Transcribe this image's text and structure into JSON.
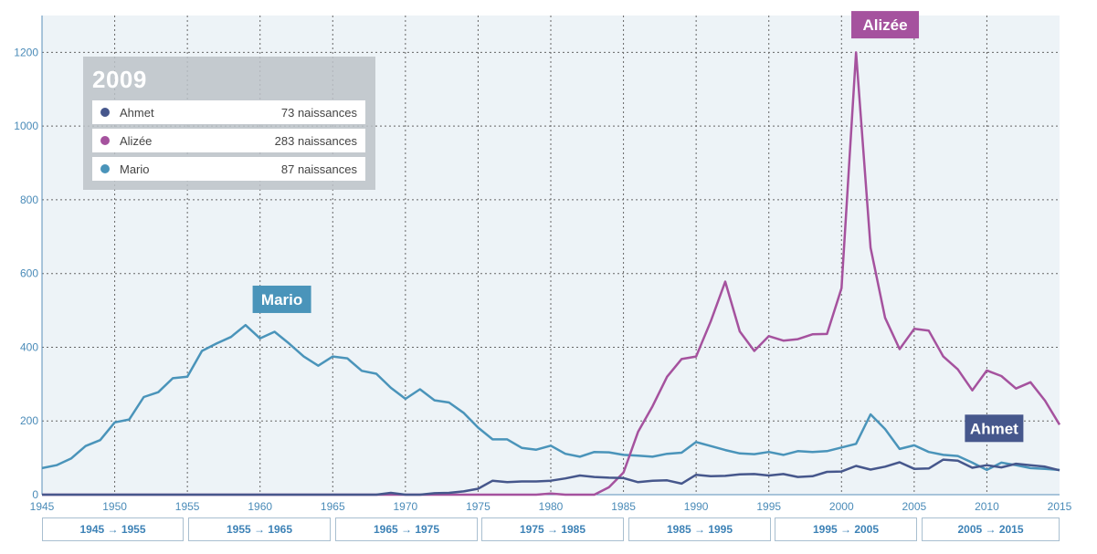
{
  "chart_data": {
    "type": "line",
    "x_range": [
      1945,
      2015
    ],
    "ylim": [
      0,
      1300
    ],
    "y_ticks": [
      0,
      200,
      400,
      600,
      800,
      1000,
      1200
    ],
    "x_ticks": [
      1945,
      1950,
      1955,
      1960,
      1965,
      1970,
      1975,
      1980,
      1985,
      1990,
      1995,
      2000,
      2005,
      2010,
      2015
    ],
    "grid": true,
    "series": [
      {
        "name": "Mario",
        "color": "#4a94ba",
        "x": [
          1945,
          1946,
          1947,
          1948,
          1949,
          1950,
          1951,
          1952,
          1953,
          1954,
          1955,
          1956,
          1957,
          1958,
          1959,
          1960,
          1961,
          1962,
          1963,
          1964,
          1965,
          1966,
          1967,
          1968,
          1969,
          1970,
          1971,
          1972,
          1973,
          1974,
          1975,
          1976,
          1977,
          1978,
          1979,
          1980,
          1981,
          1982,
          1983,
          1984,
          1985,
          1986,
          1987,
          1988,
          1989,
          1990,
          1991,
          1992,
          1993,
          1994,
          1995,
          1996,
          1997,
          1998,
          1999,
          2000,
          2001,
          2002,
          2003,
          2004,
          2005,
          2006,
          2007,
          2008,
          2009,
          2010,
          2011,
          2012,
          2013,
          2014,
          2015
        ],
        "values": [
          72,
          80,
          98,
          132,
          148,
          196,
          204,
          265,
          278,
          316,
          320,
          390,
          410,
          428,
          460,
          424,
          442,
          410,
          375,
          350,
          375,
          370,
          336,
          328,
          290,
          260,
          286,
          256,
          250,
          222,
          182,
          150,
          150,
          127,
          122,
          133,
          111,
          103,
          116,
          115,
          108,
          106,
          103,
          111,
          114,
          143,
          132,
          121,
          112,
          110,
          116,
          108,
          118,
          116,
          118,
          128,
          138,
          218,
          178,
          124,
          134,
          116,
          108,
          105,
          87,
          67,
          87,
          80,
          72,
          70,
          67
        ]
      },
      {
        "name": "Alizée",
        "color": "#a5529e",
        "x": [
          1945,
          1946,
          1947,
          1948,
          1949,
          1950,
          1951,
          1952,
          1953,
          1954,
          1955,
          1956,
          1957,
          1958,
          1959,
          1960,
          1961,
          1962,
          1963,
          1964,
          1965,
          1966,
          1967,
          1968,
          1969,
          1970,
          1971,
          1972,
          1973,
          1974,
          1975,
          1976,
          1977,
          1978,
          1979,
          1980,
          1981,
          1982,
          1983,
          1984,
          1985,
          1986,
          1987,
          1988,
          1989,
          1990,
          1991,
          1992,
          1993,
          1994,
          1995,
          1996,
          1997,
          1998,
          1999,
          2000,
          2001,
          2002,
          2003,
          2004,
          2005,
          2006,
          2007,
          2008,
          2009,
          2010,
          2011,
          2012,
          2013,
          2014,
          2015
        ],
        "values": [
          0,
          0,
          0,
          0,
          0,
          0,
          0,
          0,
          0,
          0,
          0,
          0,
          0,
          0,
          0,
          0,
          0,
          0,
          0,
          0,
          0,
          0,
          0,
          0,
          0,
          0,
          0,
          0,
          0,
          0,
          0,
          0,
          0,
          0,
          0,
          3,
          0,
          0,
          0,
          20,
          60,
          170,
          240,
          320,
          368,
          375,
          470,
          578,
          443,
          390,
          430,
          418,
          422,
          435,
          436,
          560,
          1200,
          670,
          480,
          395,
          450,
          445,
          375,
          340,
          283,
          337,
          322,
          288,
          305,
          255,
          190
        ]
      },
      {
        "name": "Ahmet",
        "color": "#46578c",
        "x": [
          1945,
          1946,
          1947,
          1948,
          1949,
          1950,
          1951,
          1952,
          1953,
          1954,
          1955,
          1956,
          1957,
          1958,
          1959,
          1960,
          1961,
          1962,
          1963,
          1964,
          1965,
          1966,
          1967,
          1968,
          1969,
          1970,
          1971,
          1972,
          1973,
          1974,
          1975,
          1976,
          1977,
          1978,
          1979,
          1980,
          1981,
          1982,
          1983,
          1984,
          1985,
          1986,
          1987,
          1988,
          1989,
          1990,
          1991,
          1992,
          1993,
          1994,
          1995,
          1996,
          1997,
          1998,
          1999,
          2000,
          2001,
          2002,
          2003,
          2004,
          2005,
          2006,
          2007,
          2008,
          2009,
          2010,
          2011,
          2012,
          2013,
          2014,
          2015
        ],
        "values": [
          0,
          0,
          0,
          0,
          0,
          0,
          0,
          0,
          0,
          0,
          0,
          0,
          0,
          0,
          0,
          0,
          0,
          0,
          0,
          0,
          0,
          0,
          0,
          0,
          5,
          0,
          0,
          4,
          5,
          9,
          16,
          38,
          34,
          36,
          36,
          38,
          44,
          52,
          48,
          46,
          45,
          34,
          38,
          39,
          30,
          54,
          50,
          51,
          55,
          56,
          52,
          56,
          48,
          50,
          62,
          63,
          78,
          68,
          76,
          88,
          70,
          71,
          95,
          92,
          73,
          80,
          74,
          84,
          80,
          76,
          66
        ]
      }
    ],
    "annotations": [
      {
        "label": "Mario",
        "series": "Mario",
        "x": 1961.5,
        "y": 530,
        "color": "#4a94ba"
      },
      {
        "label": "Alizée",
        "series": "Alizée",
        "x": 2003,
        "y": 1275,
        "color": "#a5529e"
      },
      {
        "label": "Ahmet",
        "series": "Ahmet",
        "x": 2010.5,
        "y": 180,
        "color": "#46578c"
      }
    ]
  },
  "legend": {
    "year": "2009",
    "rows": [
      {
        "name": "Ahmet",
        "count": "73 naissances",
        "color": "#46578c"
      },
      {
        "name": "Alizée",
        "count": "283 naissances",
        "color": "#a5529e"
      },
      {
        "name": "Mario",
        "count": "87 naissances",
        "color": "#4a94ba"
      }
    ]
  },
  "decade_buttons": [
    "1945 → 1955",
    "1955 → 1965",
    "1965 → 1975",
    "1975 → 1985",
    "1985 → 1995",
    "1995 → 2005",
    "2005 → 2015"
  ]
}
